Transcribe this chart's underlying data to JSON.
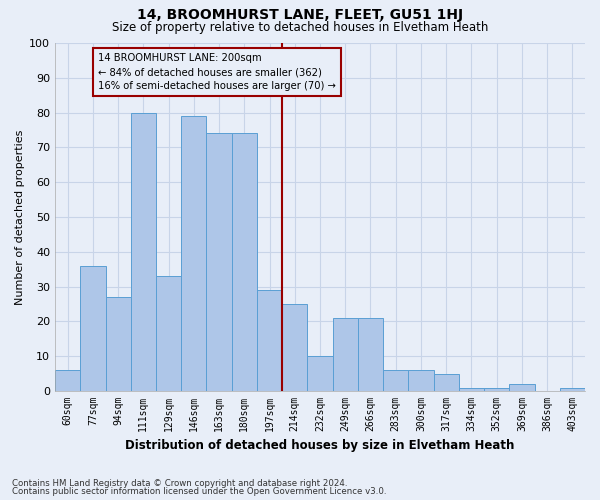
{
  "title": "14, BROOMHURST LANE, FLEET, GU51 1HJ",
  "subtitle": "Size of property relative to detached houses in Elvetham Heath",
  "xlabel": "Distribution of detached houses by size in Elvetham Heath",
  "ylabel": "Number of detached properties",
  "bar_labels": [
    "60sqm",
    "77sqm",
    "94sqm",
    "111sqm",
    "129sqm",
    "146sqm",
    "163sqm",
    "180sqm",
    "197sqm",
    "214sqm",
    "232sqm",
    "249sqm",
    "266sqm",
    "283sqm",
    "300sqm",
    "317sqm",
    "334sqm",
    "352sqm",
    "369sqm",
    "386sqm",
    "403sqm"
  ],
  "bar_heights": [
    6,
    36,
    27,
    80,
    33,
    79,
    74,
    74,
    29,
    25,
    10,
    21,
    21,
    6,
    6,
    5,
    1,
    1,
    2,
    0,
    1
  ],
  "bar_color": "#aec6e8",
  "bar_edgecolor": "#5a9fd4",
  "annotation_text": "14 BROOMHURST LANE: 200sqm\n← 84% of detached houses are smaller (362)\n16% of semi-detached houses are larger (70) →",
  "ylim": [
    0,
    100
  ],
  "yticks": [
    0,
    10,
    20,
    30,
    40,
    50,
    60,
    70,
    80,
    90,
    100
  ],
  "footnote1": "Contains HM Land Registry data © Crown copyright and database right 2024.",
  "footnote2": "Contains public sector information licensed under the Open Government Licence v3.0.",
  "bg_color": "#e8eef8",
  "grid_color": "#c8d4e8",
  "ref_line_color": "#990000",
  "ref_line_index": 8
}
